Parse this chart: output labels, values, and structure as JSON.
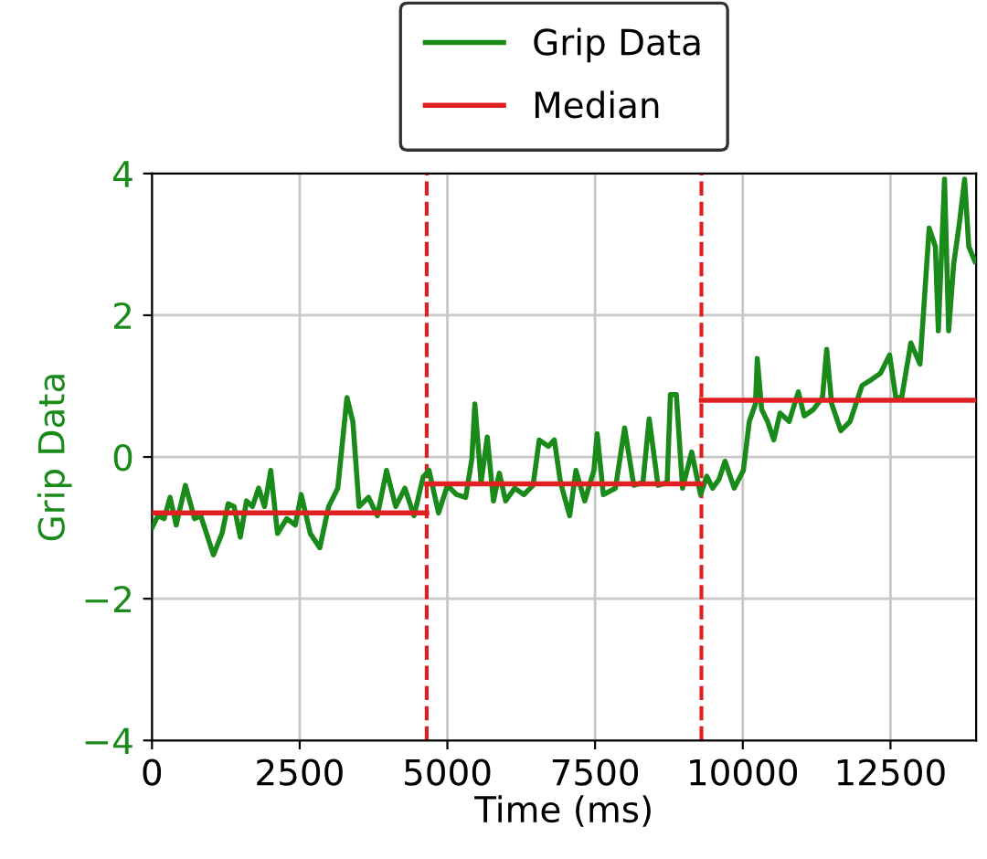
{
  "chart_data": {
    "type": "line",
    "xlabel": "Time (ms)",
    "ylabel": "Grip Data",
    "xlim": [
      0,
      13950
    ],
    "ylim": [
      -4,
      4
    ],
    "xticks": [
      0,
      2500,
      5000,
      7500,
      10000,
      12500
    ],
    "yticks": [
      {
        "value": -4,
        "label": "−4"
      },
      {
        "value": -2,
        "label": "−2"
      },
      0,
      2,
      4
    ],
    "grid": true,
    "legend": "top",
    "line_style": "solid",
    "marker": "none",
    "series": [
      {
        "name": "Grip Data",
        "color": "#1a8a1a",
        "x": [
          0,
          100,
          205,
          306,
          410,
          565,
          720,
          825,
          1040,
          1185,
          1290,
          1390,
          1495,
          1600,
          1700,
          1805,
          1905,
          2010,
          2125,
          2280,
          2425,
          2525,
          2680,
          2840,
          2990,
          3145,
          3300,
          3400,
          3505,
          3665,
          3815,
          3970,
          4125,
          4280,
          4435,
          4590,
          4690,
          4850,
          5000,
          5155,
          5310,
          5415,
          5465,
          5570,
          5675,
          5780,
          5880,
          5985,
          6140,
          6295,
          6450,
          6555,
          6710,
          6810,
          6915,
          7070,
          7175,
          7325,
          7480,
          7535,
          7640,
          7845,
          8000,
          8155,
          8310,
          8415,
          8565,
          8720,
          8775,
          8875,
          8980,
          9135,
          9285,
          9390,
          9490,
          9595,
          9700,
          9855,
          10010,
          10110,
          10215,
          10245,
          10320,
          10420,
          10525,
          10630,
          10785,
          10940,
          11040,
          11195,
          11350,
          11420,
          11505,
          11660,
          11815,
          11915,
          12020,
          12175,
          12330,
          12485,
          12590,
          12690,
          12845,
          13000,
          13155,
          13260,
          13310,
          13415,
          13485,
          13570,
          13670,
          13755,
          13825,
          13930
        ],
        "values": [
          -1.0,
          -0.83,
          -0.87,
          -0.57,
          -0.96,
          -0.4,
          -0.87,
          -0.83,
          -1.38,
          -1.08,
          -0.66,
          -0.7,
          -1.13,
          -0.62,
          -0.7,
          -0.44,
          -0.7,
          -0.19,
          -1.08,
          -0.87,
          -0.96,
          -0.53,
          -1.08,
          -1.28,
          -0.7,
          -0.44,
          0.84,
          0.5,
          -0.7,
          -0.57,
          -0.83,
          -0.19,
          -0.7,
          -0.44,
          -0.83,
          -0.28,
          -0.19,
          -0.79,
          -0.4,
          -0.53,
          -0.57,
          -0.02,
          0.75,
          -0.36,
          0.28,
          -0.62,
          -0.23,
          -0.62,
          -0.44,
          -0.53,
          -0.4,
          0.24,
          0.15,
          0.24,
          -0.36,
          -0.83,
          -0.19,
          -0.62,
          -0.19,
          0.33,
          -0.53,
          -0.44,
          0.41,
          -0.4,
          -0.36,
          0.54,
          -0.4,
          -0.36,
          0.88,
          0.88,
          -0.44,
          0.07,
          -0.53,
          -0.27,
          -0.44,
          -0.32,
          -0.06,
          -0.44,
          -0.19,
          0.5,
          0.75,
          1.39,
          0.67,
          0.5,
          0.24,
          0.62,
          0.5,
          0.92,
          0.58,
          0.67,
          0.84,
          1.52,
          0.75,
          0.37,
          0.5,
          0.75,
          1.01,
          1.09,
          1.18,
          1.44,
          0.84,
          0.84,
          1.61,
          1.31,
          3.23,
          2.97,
          1.78,
          3.92,
          1.78,
          2.72,
          3.32,
          3.92,
          2.97,
          2.76
        ]
      },
      {
        "name": "Median",
        "color": "#e02020",
        "x": [
          0,
          4650
        ],
        "values": [
          -0.79,
          -0.79
        ]
      },
      {
        "color": "#e02020",
        "x": [
          4650,
          9300
        ],
        "values": [
          -0.38,
          -0.38
        ]
      },
      {
        "color": "#e02020",
        "x": [
          9300,
          13950
        ],
        "values": [
          0.8,
          0.8
        ]
      }
    ],
    "ref_lines": [
      {
        "axis": "x",
        "value": 4650,
        "color": "#e02020",
        "line_style": "dashed"
      },
      {
        "axis": "x",
        "value": 9300,
        "color": "#e02020",
        "line_style": "dashed"
      }
    ]
  }
}
